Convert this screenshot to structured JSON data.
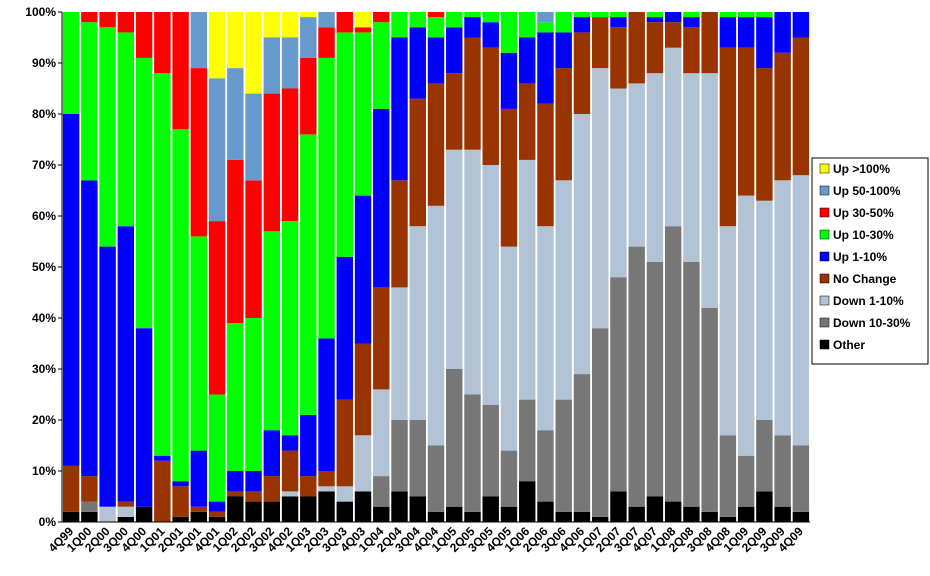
{
  "chart_data": {
    "type": "stacked_bar_100",
    "categories": [
      "4Q99",
      "1Q00",
      "2Q00",
      "3Q00",
      "4Q00",
      "1Q01",
      "2Q01",
      "3Q01",
      "4Q01",
      "1Q02",
      "2Q02",
      "3Q02",
      "4Q02",
      "1Q03",
      "2Q03",
      "3Q03",
      "4Q03",
      "1Q04",
      "2Q04",
      "3Q04",
      "4Q04",
      "1Q05",
      "2Q05",
      "3Q05",
      "4Q05",
      "1Q06",
      "2Q06",
      "3Q06",
      "4Q06",
      "1Q07",
      "2Q07",
      "3Q07",
      "4Q07",
      "1Q08",
      "2Q08",
      "3Q08",
      "4Q08",
      "1Q09",
      "2Q09",
      "3Q09",
      "4Q09"
    ],
    "series": [
      {
        "name": "Up >100%",
        "color": "#ffff00",
        "values": [
          0,
          0,
          0,
          0,
          0,
          0,
          0,
          0,
          13,
          11,
          16,
          5,
          5,
          1,
          0,
          0,
          3,
          0,
          0,
          0,
          0,
          0,
          0,
          0,
          0,
          0,
          0,
          0,
          0,
          0,
          0,
          0,
          0,
          0,
          0,
          0,
          0,
          0,
          0,
          0,
          0
        ]
      },
      {
        "name": "Up 50-100%",
        "color": "#6699cc",
        "values": [
          0,
          0,
          0,
          0,
          0,
          0,
          0,
          11,
          28,
          18,
          17,
          11,
          10,
          8,
          3,
          0,
          0,
          0,
          0,
          0,
          0,
          0,
          0,
          0,
          0,
          0,
          2,
          0,
          0,
          0,
          0,
          0,
          0,
          0,
          0,
          0,
          0,
          0,
          0,
          0,
          0
        ]
      },
      {
        "name": "Up 30-50%",
        "color": "#ff0000",
        "values": [
          0,
          2,
          3,
          4,
          9,
          12,
          23,
          33,
          34,
          32,
          27,
          27,
          26,
          15,
          6,
          4,
          1,
          2,
          0,
          0,
          1,
          0,
          0,
          0,
          0,
          0,
          0,
          0,
          0,
          0,
          0,
          0,
          0,
          0,
          0,
          0,
          0,
          0,
          0,
          0,
          0
        ]
      },
      {
        "name": "Up 10-30%",
        "color": "#00ff00",
        "values": [
          20,
          31,
          43,
          38,
          53,
          75,
          69,
          42,
          21,
          29,
          30,
          39,
          42,
          55,
          55,
          44,
          32,
          17,
          5,
          3,
          4,
          3,
          1,
          2,
          8,
          5,
          2,
          4,
          1,
          1,
          1,
          0,
          1,
          0,
          1,
          0,
          1,
          1,
          1,
          0,
          0
        ]
      },
      {
        "name": "Up 1-10%",
        "color": "#0000ff",
        "values": [
          69,
          58,
          51,
          54,
          35,
          1,
          1,
          11,
          2,
          4,
          4,
          9,
          3,
          12,
          26,
          28,
          29,
          35,
          28,
          14,
          9,
          9,
          4,
          5,
          11,
          9,
          14,
          7,
          3,
          0,
          2,
          0,
          1,
          2,
          2,
          0,
          6,
          6,
          10,
          8,
          5
        ]
      },
      {
        "name": "No Change",
        "color": "#993300",
        "values": [
          9,
          5,
          0,
          1,
          0,
          12,
          6,
          1,
          1,
          1,
          2,
          5,
          8,
          4,
          3,
          17,
          18,
          20,
          21,
          25,
          24,
          15,
          22,
          23,
          27,
          15,
          24,
          22,
          16,
          10,
          12,
          14,
          10,
          5,
          9,
          12,
          35,
          29,
          26,
          25,
          27
        ]
      },
      {
        "name": "Down 1-10%",
        "color": "#b3c3d6",
        "values": [
          0,
          0,
          3,
          2,
          0,
          0,
          0,
          0,
          0,
          0,
          0,
          0,
          1,
          0,
          1,
          3,
          11,
          17,
          26,
          38,
          47,
          43,
          48,
          47,
          40,
          47,
          40,
          43,
          51,
          51,
          37,
          32,
          37,
          35,
          37,
          46,
          41,
          51,
          43,
          50,
          53
        ]
      },
      {
        "name": "Down 10-30%",
        "color": "#777777",
        "values": [
          0,
          2,
          0,
          0,
          0,
          0,
          0,
          0,
          0,
          0,
          0,
          0,
          0,
          0,
          0,
          0,
          0,
          6,
          14,
          15,
          13,
          27,
          23,
          18,
          11,
          16,
          14,
          22,
          27,
          37,
          42,
          51,
          46,
          54,
          48,
          40,
          16,
          10,
          14,
          14,
          13
        ]
      },
      {
        "name": "Other",
        "color": "#000000",
        "values": [
          2,
          2,
          0,
          1,
          3,
          0,
          1,
          2,
          1,
          5,
          4,
          4,
          5,
          5,
          6,
          4,
          6,
          3,
          6,
          5,
          2,
          3,
          2,
          5,
          3,
          8,
          4,
          2,
          2,
          1,
          6,
          3,
          5,
          4,
          3,
          2,
          1,
          3,
          6,
          3,
          2
        ]
      }
    ],
    "ylim": [
      0,
      100
    ],
    "yticks": [
      {
        "value": 0,
        "label": "0%"
      },
      {
        "value": 10,
        "label": "10%"
      },
      {
        "value": 20,
        "label": "20%"
      },
      {
        "value": 30,
        "label": "30%"
      },
      {
        "value": 40,
        "label": "40%"
      },
      {
        "value": 50,
        "label": "50%"
      },
      {
        "value": 60,
        "label": "60%"
      },
      {
        "value": 70,
        "label": "70%"
      },
      {
        "value": 80,
        "label": "80%"
      },
      {
        "value": 90,
        "label": "90%"
      },
      {
        "value": 100,
        "label": "100%"
      }
    ],
    "grid": false,
    "legend": "right"
  }
}
